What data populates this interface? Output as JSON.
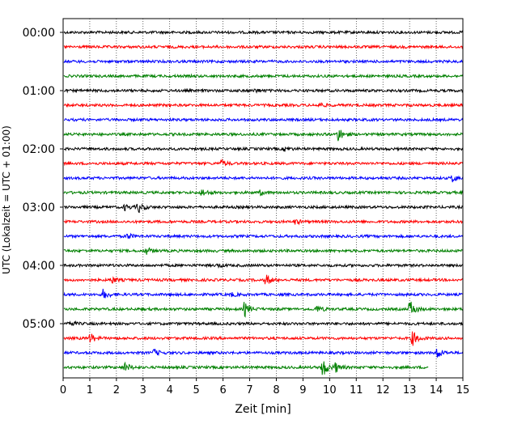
{
  "chart_data": {
    "type": "line",
    "title": "",
    "xlabel": "Zeit  [min]",
    "ylabel": "UTC (Lokalzeit = UTC + 01:00)",
    "xlim": [
      0,
      15
    ],
    "x_ticks": [
      "0",
      "1",
      "2",
      "3",
      "4",
      "5",
      "6",
      "7",
      "8",
      "9",
      "10",
      "11",
      "12",
      "13",
      "14",
      "15"
    ],
    "y_tick_labels": [
      "00:00",
      "01:00",
      "02:00",
      "03:00",
      "04:00",
      "05:00"
    ],
    "grid": "vertical dotted at each minute",
    "color_cycle": [
      "#000000",
      "#ff0000",
      "#0000ff",
      "#008000"
    ],
    "traces": [
      {
        "utc": "00:00",
        "color": "#000000",
        "end_min": 15,
        "events": []
      },
      {
        "utc": "00:15",
        "color": "#ff0000",
        "end_min": 15,
        "events": []
      },
      {
        "utc": "00:30",
        "color": "#0000ff",
        "end_min": 15,
        "events": []
      },
      {
        "utc": "00:45",
        "color": "#008000",
        "end_min": 15,
        "events": []
      },
      {
        "utc": "01:00",
        "color": "#000000",
        "end_min": 15,
        "events": [
          [
            7.2,
            0.4
          ]
        ]
      },
      {
        "utc": "01:15",
        "color": "#ff0000",
        "end_min": 15,
        "events": [
          [
            9.6,
            0.5
          ]
        ]
      },
      {
        "utc": "01:30",
        "color": "#0000ff",
        "end_min": 15,
        "events": []
      },
      {
        "utc": "01:45",
        "color": "#008000",
        "end_min": 15,
        "events": [
          [
            10.3,
            1.6
          ]
        ]
      },
      {
        "utc": "02:00",
        "color": "#000000",
        "end_min": 15,
        "events": [
          [
            8.3,
            0.4
          ]
        ]
      },
      {
        "utc": "02:15",
        "color": "#ff0000",
        "end_min": 15,
        "events": [
          [
            5.9,
            0.7
          ]
        ]
      },
      {
        "utc": "02:30",
        "color": "#0000ff",
        "end_min": 15,
        "events": [
          [
            14.6,
            0.8
          ]
        ]
      },
      {
        "utc": "02:45",
        "color": "#008000",
        "end_min": 15,
        "events": [
          [
            5.2,
            0.8
          ],
          [
            7.4,
            0.5
          ]
        ]
      },
      {
        "utc": "03:00",
        "color": "#000000",
        "end_min": 15,
        "events": [
          [
            2.3,
            0.6
          ],
          [
            2.8,
            1.2
          ]
        ]
      },
      {
        "utc": "03:15",
        "color": "#ff0000",
        "end_min": 15,
        "events": [
          [
            8.7,
            0.5
          ]
        ]
      },
      {
        "utc": "03:30",
        "color": "#0000ff",
        "end_min": 15,
        "events": [
          [
            2.4,
            0.6
          ]
        ]
      },
      {
        "utc": "03:45",
        "color": "#008000",
        "end_min": 15,
        "events": [
          [
            3.1,
            0.8
          ]
        ]
      },
      {
        "utc": "04:00",
        "color": "#000000",
        "end_min": 15,
        "events": [
          [
            5.8,
            0.4
          ]
        ]
      },
      {
        "utc": "04:15",
        "color": "#ff0000",
        "end_min": 15,
        "events": [
          [
            1.8,
            0.7
          ],
          [
            7.6,
            1.2
          ]
        ]
      },
      {
        "utc": "04:30",
        "color": "#0000ff",
        "end_min": 15,
        "events": [
          [
            1.5,
            1.0
          ],
          [
            6.3,
            0.4
          ]
        ]
      },
      {
        "utc": "04:45",
        "color": "#008000",
        "end_min": 15,
        "events": [
          [
            6.8,
            1.6
          ],
          [
            9.5,
            0.8
          ],
          [
            13.0,
            2.0
          ]
        ]
      },
      {
        "utc": "05:00",
        "color": "#000000",
        "end_min": 15,
        "events": [
          [
            0.2,
            0.6
          ]
        ]
      },
      {
        "utc": "05:15",
        "color": "#ff0000",
        "end_min": 15,
        "events": [
          [
            1.0,
            1.0
          ],
          [
            13.1,
            1.6
          ]
        ]
      },
      {
        "utc": "05:30",
        "color": "#0000ff",
        "end_min": 15,
        "events": [
          [
            3.4,
            0.7
          ],
          [
            14.0,
            1.3
          ]
        ]
      },
      {
        "utc": "05:45",
        "color": "#008000",
        "end_min": 13.7,
        "events": [
          [
            2.3,
            1.0
          ],
          [
            9.7,
            2.5
          ],
          [
            10.2,
            1.0
          ]
        ]
      }
    ]
  }
}
